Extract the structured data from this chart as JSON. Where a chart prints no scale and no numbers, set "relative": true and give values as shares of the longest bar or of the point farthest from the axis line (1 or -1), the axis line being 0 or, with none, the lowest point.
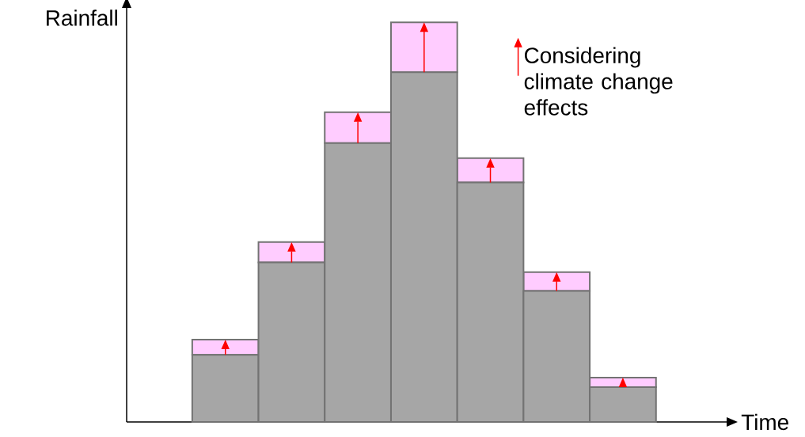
{
  "chart_data": {
    "type": "bar",
    "stacked": true,
    "relative": true,
    "xlabel": "Time",
    "ylabel": "Rainfall",
    "categories": [
      null,
      null,
      null,
      null,
      null,
      null,
      null
    ],
    "series": [
      {
        "color": "#a6a6a6",
        "values": [
          0.168,
          0.399,
          0.698,
          0.875,
          0.599,
          0.328,
          0.087
        ]
      },
      {
        "name": "Considering climate change effects",
        "color": "#ffccff",
        "values": [
          0.038,
          0.051,
          0.077,
          0.125,
          0.061,
          0.047,
          0.024
        ]
      }
    ],
    "legend": "top right"
  }
}
